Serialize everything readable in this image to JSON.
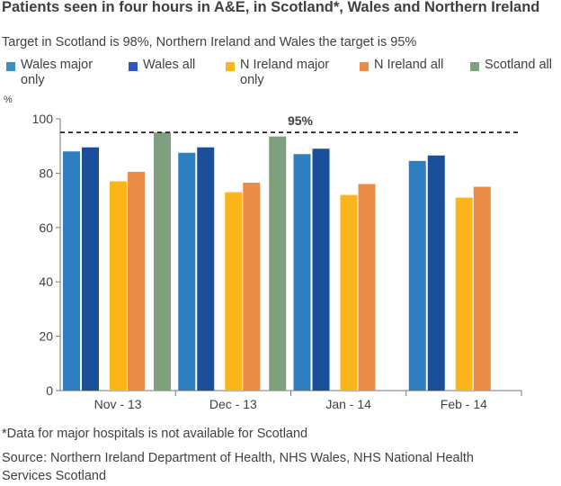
{
  "title": "Patients seen in four hours in A&E, in Scotland*, Wales and Northern Ireland",
  "subtitle": "Target in Scotland is 98%, Northern Ireland and Wales the target is 95%",
  "footnote": "*Data for major hospitals is not available for Scotland",
  "source": "Source: Northern Ireland Department of Health, NHS Wales, NHS National Health Services Scotland",
  "legend": [
    {
      "label_line1": "Wales major",
      "label_line2": "only",
      "color": "#3c8dc8"
    },
    {
      "label_line1": "Wales all",
      "label_line2": "",
      "color": "#3355c0"
    },
    {
      "label_line1": "N Ireland major",
      "label_line2": "only",
      "color": "#fbb51b"
    },
    {
      "label_line1": "N Ireland all",
      "label_line2": "",
      "color": "#ec8b45"
    },
    {
      "label_line1": "Scotland all",
      "label_line2": "",
      "color": "#7ea07e"
    }
  ],
  "chart_data": {
    "type": "bar",
    "ylabel": "%",
    "ylim": [
      0,
      100
    ],
    "yticks": [
      "0",
      "20",
      "40",
      "60",
      "80",
      "100"
    ],
    "grid": false,
    "legend_position": "top",
    "categories": [
      "Nov - 13",
      "Dec - 13",
      "Jan - 14",
      "Feb - 14"
    ],
    "series": [
      {
        "name": "Wales major only",
        "color": "#2f7fc0",
        "values": [
          88,
          87.5,
          87,
          84.5
        ]
      },
      {
        "name": "Wales all",
        "color": "#1a4f9c",
        "values": [
          89.5,
          89.5,
          89,
          86.5
        ]
      },
      {
        "name": "N Ireland major only",
        "color": "#fbb51b",
        "values": [
          77,
          73,
          72,
          71
        ]
      },
      {
        "name": "N Ireland all",
        "color": "#ec8b45",
        "values": [
          80.5,
          76.5,
          76,
          75
        ]
      },
      {
        "name": "Scotland all",
        "color": "#7ea07e",
        "values": [
          95,
          93.5,
          null,
          null
        ]
      }
    ],
    "target": {
      "value": 95,
      "label": "95%"
    }
  }
}
